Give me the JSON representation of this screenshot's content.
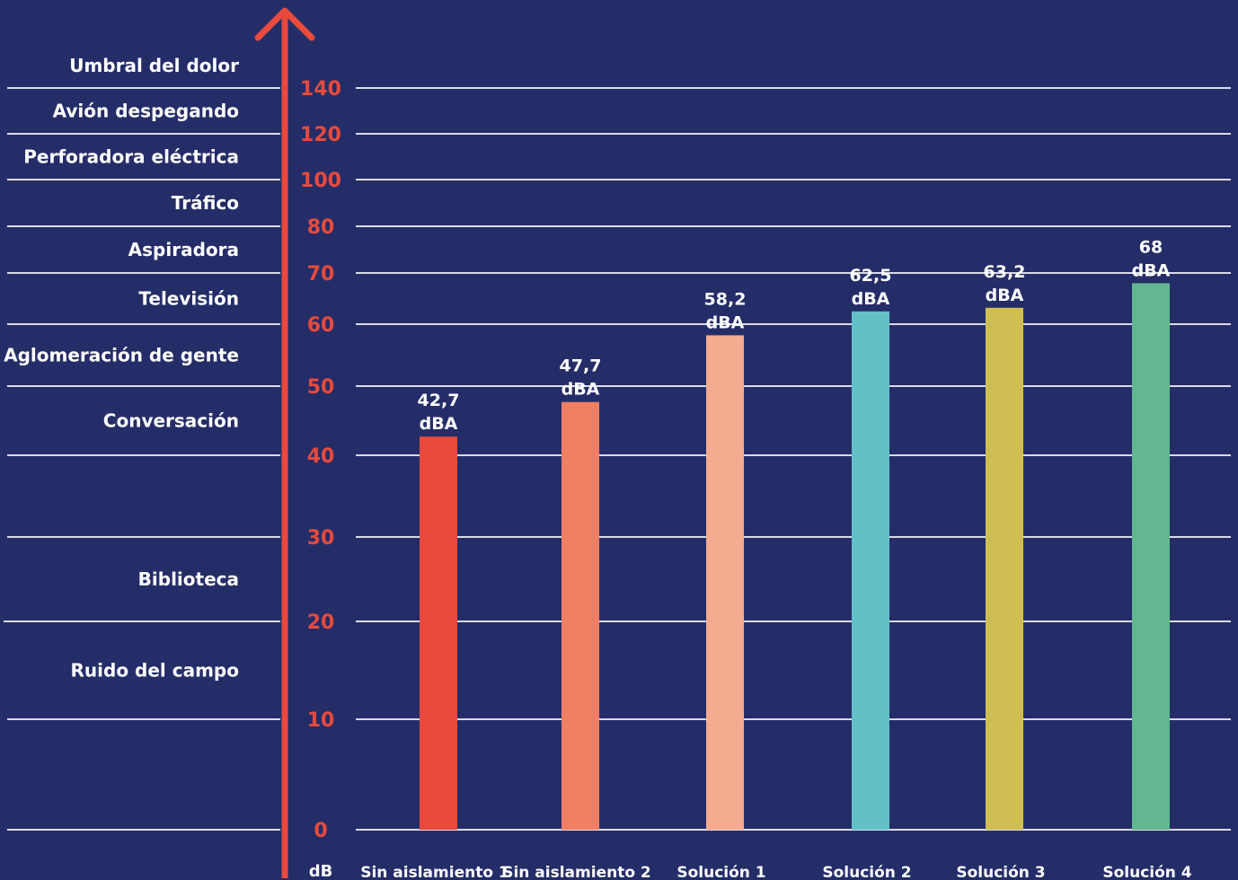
{
  "colors": {
    "background": "#252d68",
    "gridline": "#d9dbe8",
    "axis": "#e84a3c",
    "text": "#ffffff",
    "tick_text": "#e84a3c"
  },
  "chart_data": {
    "type": "bar",
    "title": "",
    "xlabel": "",
    "ylabel": "dB",
    "categories": [
      "Sin aislamiento 1",
      "Sin aislamiento 2",
      "Solución 1",
      "Solución 2",
      "Solución 3",
      "Solución 4"
    ],
    "values": [
      42.7,
      47.7,
      58.2,
      62.5,
      63.2,
      68
    ],
    "value_labels": [
      "42,7\ndBA",
      "47,7\ndBA",
      "58,2\ndBA",
      "62,5\ndBA",
      "63,2\ndBA",
      "68\ndBA"
    ],
    "bar_colors": [
      "#e84a3c",
      "#f07f63",
      "#f5ab90",
      "#63c1c6",
      "#cfbf52",
      "#62b690"
    ],
    "y_scale": "non-linear",
    "yticks": [
      0,
      10,
      20,
      30,
      40,
      50,
      60,
      70,
      80,
      100,
      120,
      140
    ],
    "grid": true,
    "reference_levels": [
      {
        "label": "Ruido del campo",
        "low": 10,
        "high": 20
      },
      {
        "label": "Biblioteca",
        "low": 20,
        "high": 30
      },
      {
        "label": "Conversación",
        "low": 40,
        "high": 50
      },
      {
        "label": "Aglomeración de gente",
        "low": 50,
        "high": 60
      },
      {
        "label": "Televisión",
        "low": 60,
        "high": 70
      },
      {
        "label": "Aspiradora",
        "low": 70,
        "high": 80
      },
      {
        "label": "Tráfico",
        "low": 80,
        "high": 100
      },
      {
        "label": "Perforadora eléctrica",
        "low": 100,
        "high": 120
      },
      {
        "label": "Avión despegando",
        "low": 120,
        "high": 140
      },
      {
        "label": "Umbral del dolor",
        "low": 140,
        "high": 160
      }
    ]
  }
}
